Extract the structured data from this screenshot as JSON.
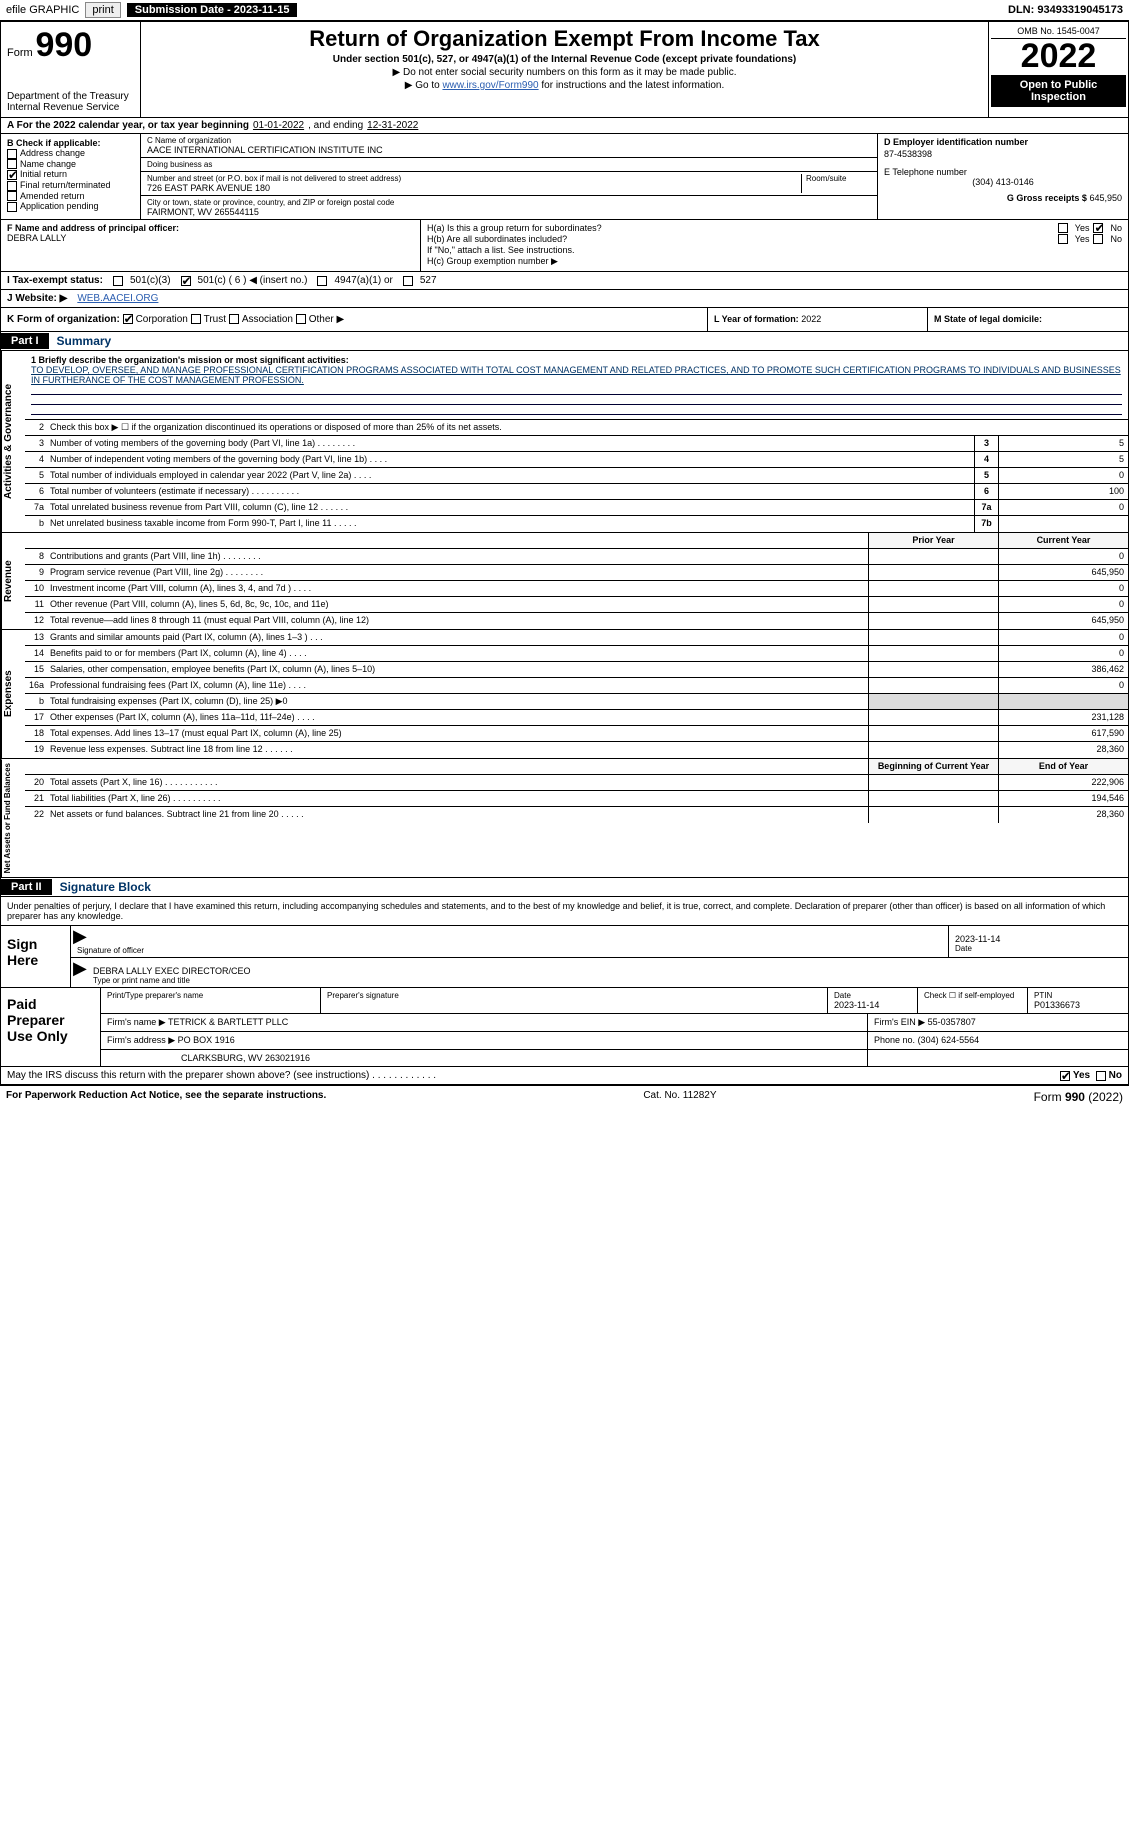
{
  "efile": {
    "label": "efile GRAPHIC",
    "print": "print",
    "subdate_label": "Submission Date - 2023-11-15",
    "dln": "DLN: 93493319045173"
  },
  "header": {
    "form_prefix": "Form",
    "form_number": "990",
    "dept": "Department of the Treasury",
    "irs": "Internal Revenue Service",
    "title": "Return of Organization Exempt From Income Tax",
    "line1": "Under section 501(c), 527, or 4947(a)(1) of the Internal Revenue Code (except private foundations)",
    "line2": "▶ Do not enter social security numbers on this form as it may be made public.",
    "line3_pre": "▶ Go to ",
    "line3_link": "www.irs.gov/Form990",
    "line3_post": " for instructions and the latest information.",
    "omb": "OMB No. 1545-0047",
    "year": "2022",
    "open": "Open to Public Inspection"
  },
  "A": {
    "text": "A For the 2022 calendar year, or tax year beginning ",
    "begin": "01-01-2022",
    "mid": " , and ending ",
    "end": "12-31-2022"
  },
  "B": {
    "label": "B Check if applicable:",
    "items": [
      {
        "label": "Address change",
        "checked": false
      },
      {
        "label": "Name change",
        "checked": false
      },
      {
        "label": "Initial return",
        "checked": true
      },
      {
        "label": "Final return/terminated",
        "checked": false
      },
      {
        "label": "Amended return",
        "checked": false
      },
      {
        "label": "Application pending",
        "checked": false
      }
    ]
  },
  "C": {
    "name_lbl": "C Name of organization",
    "name": "AACE INTERNATIONAL CERTIFICATION INSTITUTE INC",
    "dba_lbl": "Doing business as",
    "dba": "",
    "street_lbl": "Number and street (or P.O. box if mail is not delivered to street address)",
    "room_lbl": "Room/suite",
    "street": "726 EAST PARK AVENUE 180",
    "city_lbl": "City or town, state or province, country, and ZIP or foreign postal code",
    "city": "FAIRMONT, WV  265544115"
  },
  "D": {
    "lbl": "D Employer identification number",
    "val": "87-4538398"
  },
  "E": {
    "lbl": "E Telephone number",
    "val": "(304) 413-0146"
  },
  "G": {
    "lbl": "G Gross receipts $",
    "val": "645,950"
  },
  "F": {
    "lbl": "F  Name and address of principal officer:",
    "val": "DEBRA LALLY"
  },
  "H": {
    "a": "H(a)  Is this a group return for subordinates?",
    "b": "H(b)  Are all subordinates included?",
    "b2": "If \"No,\" attach a list. See instructions.",
    "c": "H(c)  Group exemption number ▶",
    "yes": "Yes",
    "no": "No"
  },
  "I": {
    "lbl": "I  Tax-exempt status:",
    "o1": "501(c)(3)",
    "o2": "501(c) ( 6 ) ◀ (insert no.)",
    "o3": "4947(a)(1) or",
    "o4": "527"
  },
  "J": {
    "lbl": "J  Website: ▶",
    "val": "WEB.AACEI.ORG"
  },
  "K": {
    "lbl": "K Form of organization:",
    "o1": "Corporation",
    "o2": "Trust",
    "o3": "Association",
    "o4": "Other ▶"
  },
  "L": {
    "lbl": "L Year of formation:",
    "val": "2022"
  },
  "M": {
    "lbl": "M State of legal domicile:",
    "val": ""
  },
  "partI": {
    "tag": "Part I",
    "title": "Summary"
  },
  "summary": {
    "brief_lbl": "1  Briefly describe the organization's mission or most significant activities:",
    "mission": "TO DEVELOP, OVERSEE, AND MANAGE PROFESSIONAL CERTIFICATION PROGRAMS ASSOCIATED WITH TOTAL COST MANAGEMENT AND RELATED PRACTICES, AND TO PROMOTE SUCH CERTIFICATION PROGRAMS TO INDIVIDUALS AND BUSINESSES IN FURTHERANCE OF THE COST MANAGEMENT PROFESSION.",
    "gov": [
      {
        "n": "2",
        "t": "Check this box ▶ ☐  if the organization discontinued its operations or disposed of more than 25% of its net assets."
      },
      {
        "n": "3",
        "t": "Number of voting members of the governing body (Part VI, line 1a)   .    .    .    .    .    .    .    .",
        "num": "3",
        "v": "5"
      },
      {
        "n": "4",
        "t": "Number of independent voting members of the governing body (Part VI, line 1b)   .    .    .    .",
        "num": "4",
        "v": "5"
      },
      {
        "n": "5",
        "t": "Total number of individuals employed in calendar year 2022 (Part V, line 2a)   .    .    .    .",
        "num": "5",
        "v": "0"
      },
      {
        "n": "6",
        "t": "Total number of volunteers (estimate if necessary)   .    .    .    .    .    .    .    .    .    .",
        "num": "6",
        "v": "100"
      },
      {
        "n": "7a",
        "t": "Total unrelated business revenue from Part VIII, column (C), line 12   .    .    .    .    .    .",
        "num": "7a",
        "v": "0"
      },
      {
        "n": "b",
        "t": "Net unrelated business taxable income from Form 990-T, Part I, line 11   .    .    .    .    .",
        "num": "7b",
        "v": ""
      }
    ],
    "cols": {
      "prior": "Prior Year",
      "current": "Current Year"
    },
    "rev": [
      {
        "n": "8",
        "t": "Contributions and grants (Part VIII, line 1h)   .    .    .    .    .    .    .    .",
        "p": "",
        "c": "0"
      },
      {
        "n": "9",
        "t": "Program service revenue (Part VIII, line 2g)   .    .    .    .    .    .    .    .",
        "p": "",
        "c": "645,950"
      },
      {
        "n": "10",
        "t": "Investment income (Part VIII, column (A), lines 3, 4, and 7d )   .    .    .    .",
        "p": "",
        "c": "0"
      },
      {
        "n": "11",
        "t": "Other revenue (Part VIII, column (A), lines 5, 6d, 8c, 9c, 10c, and 11e)",
        "p": "",
        "c": "0"
      },
      {
        "n": "12",
        "t": "Total revenue—add lines 8 through 11 (must equal Part VIII, column (A), line 12)",
        "p": "",
        "c": "645,950"
      }
    ],
    "exp": [
      {
        "n": "13",
        "t": "Grants and similar amounts paid (Part IX, column (A), lines 1–3 )   .    .    .",
        "p": "",
        "c": "0"
      },
      {
        "n": "14",
        "t": "Benefits paid to or for members (Part IX, column (A), line 4)   .    .    .    .",
        "p": "",
        "c": "0"
      },
      {
        "n": "15",
        "t": "Salaries, other compensation, employee benefits (Part IX, column (A), lines 5–10)",
        "p": "",
        "c": "386,462"
      },
      {
        "n": "16a",
        "t": "Professional fundraising fees (Part IX, column (A), line 11e)   .    .    .    .",
        "p": "",
        "c": "0"
      },
      {
        "n": "b",
        "t": "Total fundraising expenses (Part IX, column (D), line 25) ▶0",
        "shade": true
      },
      {
        "n": "17",
        "t": "Other expenses (Part IX, column (A), lines 11a–11d, 11f–24e)   .    .    .    .",
        "p": "",
        "c": "231,128"
      },
      {
        "n": "18",
        "t": "Total expenses. Add lines 13–17 (must equal Part IX, column (A), line 25)",
        "p": "",
        "c": "617,590"
      },
      {
        "n": "19",
        "t": "Revenue less expenses. Subtract line 18 from line 12   .    .    .    .    .    .",
        "p": "",
        "c": "28,360"
      }
    ],
    "cols2": {
      "prior": "Beginning of Current Year",
      "current": "End of Year"
    },
    "net": [
      {
        "n": "20",
        "t": "Total assets (Part X, line 16)   .    .    .    .    .    .    .    .    .    .    .",
        "p": "",
        "c": "222,906"
      },
      {
        "n": "21",
        "t": "Total liabilities (Part X, line 26)   .    .    .    .    .    .    .    .    .    .",
        "p": "",
        "c": "194,546"
      },
      {
        "n": "22",
        "t": "Net assets or fund balances. Subtract line 21 from line 20   .    .    .    .    .",
        "p": "",
        "c": "28,360"
      }
    ],
    "vlabels": {
      "gov": "Activities & Governance",
      "rev": "Revenue",
      "exp": "Expenses",
      "net": "Net Assets or Fund Balances"
    }
  },
  "partII": {
    "tag": "Part II",
    "title": "Signature Block"
  },
  "sig": {
    "decl": "Under penalties of perjury, I declare that I have examined this return, including accompanying schedules and statements, and to the best of my knowledge and belief, it is true, correct, and complete. Declaration of preparer (other than officer) is based on all information of which preparer has any knowledge.",
    "here": "Sign Here",
    "sig_of_officer": "Signature of officer",
    "date": "2023-11-14",
    "date_lbl": "Date",
    "typed": "DEBRA LALLY  EXEC DIRECTOR/CEO",
    "typed_lbl": "Type or print name and title"
  },
  "paid": {
    "lab": "Paid Preparer Use Only",
    "h": {
      "name": "Print/Type preparer's name",
      "sig": "Preparer's signature",
      "date": "Date",
      "check": "Check ☐ if self-employed",
      "ptin": "PTIN"
    },
    "r1": {
      "name": "",
      "sig": "",
      "date": "2023-11-14",
      "ptin": "P01336673"
    },
    "firm_name_lbl": "Firm's name    ▶",
    "firm_name": "TETRICK & BARTLETT PLLC",
    "firm_ein_lbl": "Firm's EIN ▶",
    "firm_ein": "55-0357807",
    "firm_addr_lbl": "Firm's address ▶",
    "firm_addr1": "PO BOX 1916",
    "firm_addr2": "CLARKSBURG, WV  263021916",
    "phone_lbl": "Phone no.",
    "phone": "(304) 624-5564",
    "may": "May the IRS discuss this return with the preparer shown above? (see instructions)   .    .    .    .    .    .    .    .    .    .    .    .",
    "yes": "Yes",
    "no": "No"
  },
  "footer": {
    "left": "For Paperwork Reduction Act Notice, see the separate instructions.",
    "mid": "Cat. No. 11282Y",
    "right": "Form 990 (2022)"
  }
}
